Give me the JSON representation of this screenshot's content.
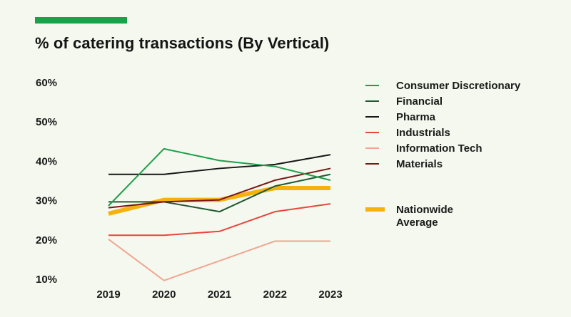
{
  "accent_color": "#1aa14a",
  "chart_data": {
    "type": "line",
    "title": "% of catering transactions (By Vertical)",
    "x": [
      "2019",
      "2020",
      "2021",
      "2022",
      "2023"
    ],
    "ylim": [
      10,
      60
    ],
    "y_ticks": [
      "60%",
      "50%",
      "40%",
      "30%",
      "20%",
      "10%"
    ],
    "y_tick_values": [
      60,
      50,
      40,
      30,
      20,
      10
    ],
    "grid": false,
    "legend_position": "right",
    "series": [
      {
        "name": "Consumer Discretionary",
        "color": "#1e9e4a",
        "values": [
          28.5,
          43,
          40,
          38.5,
          35
        ]
      },
      {
        "name": "Financial",
        "color": "#1f5a33",
        "values": [
          29.5,
          29.5,
          27,
          33.5,
          36.5
        ]
      },
      {
        "name": "Pharma",
        "color": "#161616",
        "values": [
          36.5,
          36.5,
          38,
          39,
          41.5
        ]
      },
      {
        "name": "Industrials",
        "color": "#e8463c",
        "values": [
          21,
          21,
          22,
          27,
          29
        ]
      },
      {
        "name": "Information Tech",
        "color": "#f2a591",
        "values": [
          20,
          9.5,
          14.5,
          19.5,
          19.5
        ]
      },
      {
        "name": "Materials",
        "color": "#7a1616",
        "values": [
          28,
          29.5,
          30,
          35,
          38
        ]
      },
      {
        "name": "Nationwide Average",
        "name_lines": [
          "Nationwide",
          "Average"
        ],
        "color": "#f5b20f",
        "values": [
          26.5,
          30,
          30,
          33,
          33
        ]
      }
    ]
  }
}
